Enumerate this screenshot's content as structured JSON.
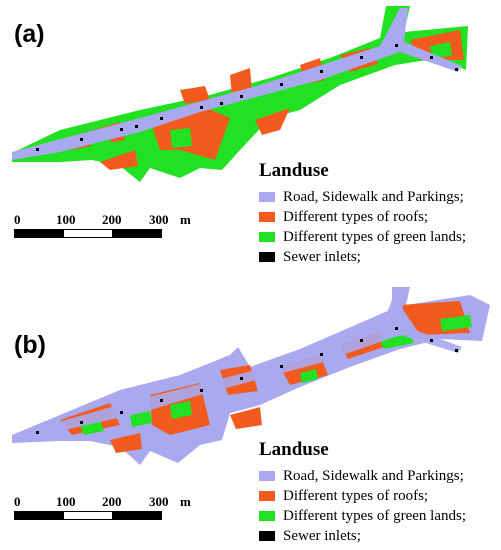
{
  "panels": [
    {
      "label": "(a)",
      "legend": {
        "title": "Landuse",
        "items": [
          {
            "label": "Road, Sidewalk and Parkings;",
            "color": "#a9a9ef"
          },
          {
            "label": "Different types of roofs;",
            "color": "#f25a1e"
          },
          {
            "label": "Different types of green lands;",
            "color": "#22e022"
          },
          {
            "label": "Sewer inlets;",
            "color": "#000000"
          }
        ]
      },
      "scale": {
        "ticks": [
          "0",
          "100",
          "200",
          "300"
        ],
        "unit": "m"
      }
    },
    {
      "label": "(b)",
      "legend": {
        "title": "Landuse",
        "items": [
          {
            "label": "Road, Sidewalk and Parkings;",
            "color": "#a9a9ef"
          },
          {
            "label": "Different types of roofs;",
            "color": "#f25a1e"
          },
          {
            "label": "Different types of green lands;",
            "color": "#22e022"
          },
          {
            "label": "Sewer inlets;",
            "color": "#000000"
          }
        ]
      },
      "scale": {
        "ticks": [
          "0",
          "100",
          "200",
          "300"
        ],
        "unit": "m"
      }
    }
  ]
}
